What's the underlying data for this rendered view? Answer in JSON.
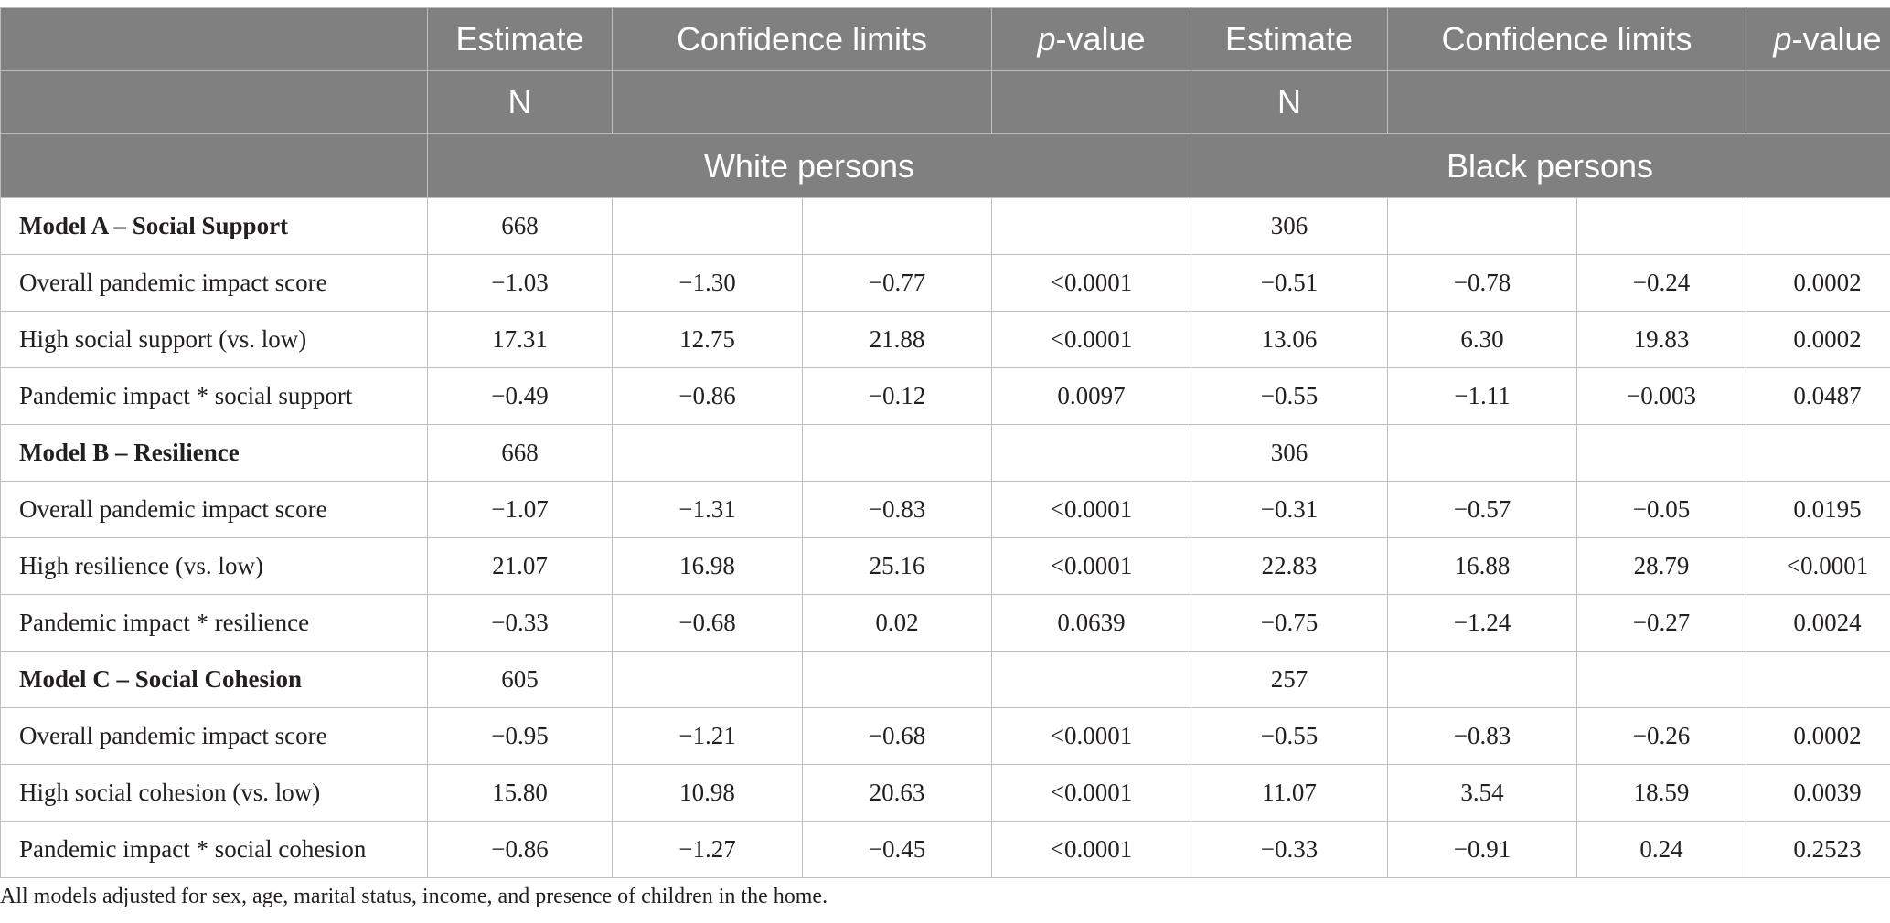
{
  "header": {
    "row1": {
      "estimate": "Estimate",
      "confidence": "Confidence limits",
      "p_letter": "p",
      "p_rest": "-value"
    },
    "row2": {
      "n": "N"
    },
    "groups": [
      "White persons",
      "Black persons"
    ]
  },
  "rows": [
    {
      "type": "model",
      "label": "Model A – Social Support",
      "cells": [
        "668",
        "",
        "",
        "",
        "306",
        "",
        "",
        ""
      ]
    },
    {
      "type": "data",
      "label": "Overall pandemic impact score",
      "cells": [
        "−1.03",
        "−1.30",
        "−0.77",
        "<0.0001",
        "−0.51",
        "−0.78",
        "−0.24",
        "0.0002"
      ]
    },
    {
      "type": "data",
      "label": "High social support (vs. low)",
      "cells": [
        "17.31",
        "12.75",
        "21.88",
        "<0.0001",
        "13.06",
        "6.30",
        "19.83",
        "0.0002"
      ]
    },
    {
      "type": "data",
      "label": "Pandemic impact * social support",
      "cells": [
        "−0.49",
        "−0.86",
        "−0.12",
        "0.0097",
        "−0.55",
        "−1.11",
        "−0.003",
        "0.0487"
      ]
    },
    {
      "type": "model",
      "label": "Model B – Resilience",
      "cells": [
        "668",
        "",
        "",
        "",
        "306",
        "",
        "",
        ""
      ]
    },
    {
      "type": "data",
      "label": "Overall pandemic impact score",
      "cells": [
        "−1.07",
        "−1.31",
        "−0.83",
        "<0.0001",
        "−0.31",
        "−0.57",
        "−0.05",
        "0.0195"
      ]
    },
    {
      "type": "data",
      "label": "High resilience (vs. low)",
      "cells": [
        "21.07",
        "16.98",
        "25.16",
        "<0.0001",
        "22.83",
        "16.88",
        "28.79",
        "<0.0001"
      ]
    },
    {
      "type": "data",
      "label": "Pandemic impact * resilience",
      "cells": [
        "−0.33",
        "−0.68",
        "0.02",
        "0.0639",
        "−0.75",
        "−1.24",
        "−0.27",
        "0.0024"
      ]
    },
    {
      "type": "model",
      "label": "Model C – Social Cohesion",
      "cells": [
        "605",
        "",
        "",
        "",
        "257",
        "",
        "",
        ""
      ]
    },
    {
      "type": "data",
      "label": "Overall pandemic impact score",
      "cells": [
        "−0.95",
        "−1.21",
        "−0.68",
        "<0.0001",
        "−0.55",
        "−0.83",
        "−0.26",
        "0.0002"
      ]
    },
    {
      "type": "data",
      "label": "High social cohesion (vs. low)",
      "cells": [
        "15.80",
        "10.98",
        "20.63",
        "<0.0001",
        "11.07",
        "3.54",
        "18.59",
        "0.0039"
      ]
    },
    {
      "type": "data",
      "label": "Pandemic impact * social cohesion",
      "cells": [
        "−0.86",
        "−1.27",
        "−0.45",
        "<0.0001",
        "−0.33",
        "−0.91",
        "0.24",
        "0.2523"
      ]
    }
  ],
  "note": "All models adjusted for sex, age, marital status, income, and presence of children in the home."
}
